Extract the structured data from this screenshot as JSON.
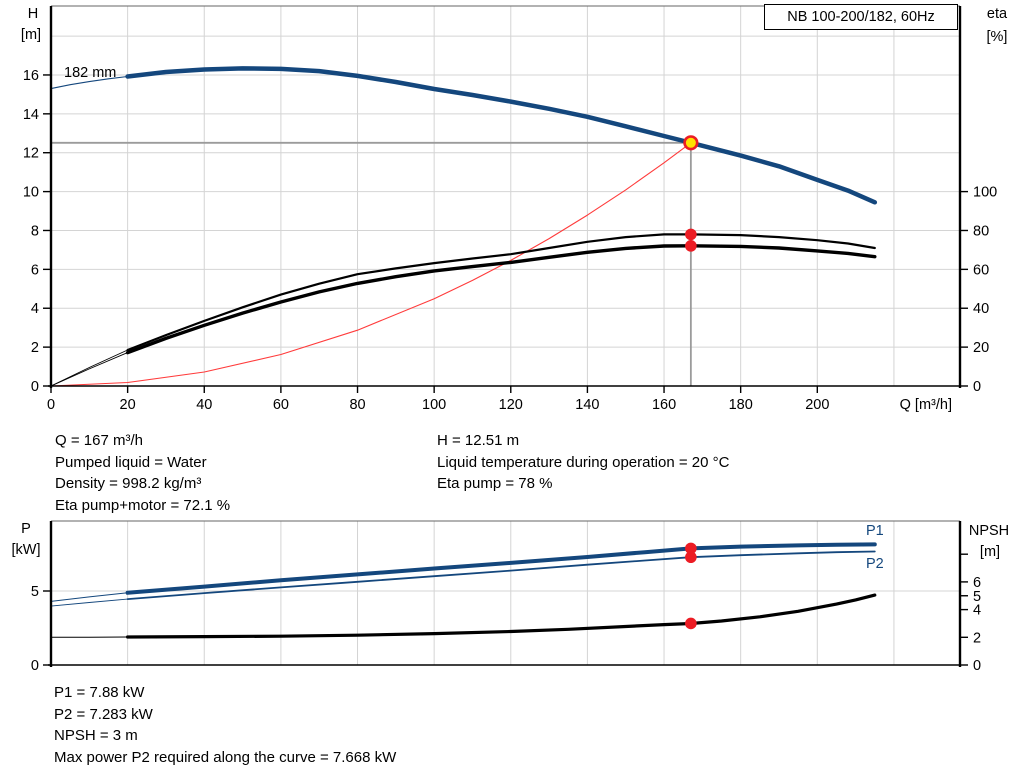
{
  "colors": {
    "curve_blue": "#14477d",
    "curve_black": "#000000",
    "system_red": "#ff3b3b",
    "dot_red": "#ec1c24",
    "duty_yellow": "#ffe100",
    "crosshair_gray": "#9b9b9b",
    "grid_gray": "#d4d4d4"
  },
  "info_top": {
    "left": [
      "Q = 167 m³/h",
      "Pumped liquid = Water",
      "Density = 998.2 kg/m³",
      "Eta pump+motor = 72.1 %"
    ],
    "right": [
      "H = 12.51 m",
      "Liquid temperature during operation = 20 °C",
      "Eta pump = 78 %"
    ]
  },
  "info_bottom": [
    "P1 = 7.88 kW",
    "P2 = 7.283 kW",
    "NPSH = 3 m",
    "Max power P2 required along the curve = 7.668 kW"
  ],
  "chart_data": [
    {
      "type": "line",
      "title": "NB 100-200/182, 60Hz",
      "x_axis": {
        "label": "Q [m³/h]",
        "ticks": [
          0,
          20,
          40,
          60,
          80,
          100,
          120,
          140,
          160,
          180,
          200
        ],
        "grid_max": 220,
        "range": [
          0,
          237
        ]
      },
      "y_left": {
        "label_lines": [
          "H",
          "[m]"
        ],
        "ticks": [
          0,
          2,
          4,
          6,
          8,
          10,
          12,
          14,
          16
        ],
        "grid": [
          2,
          4,
          6,
          8,
          10,
          12,
          14,
          16,
          18
        ],
        "range": [
          0,
          19.5
        ]
      },
      "y_right": {
        "label_lines": [
          "eta",
          "[%]"
        ],
        "ticks": [
          0,
          20,
          40,
          60,
          80,
          100
        ],
        "range": [
          0,
          195
        ]
      },
      "series": [
        {
          "name": "system-curve",
          "color": "#ff3b3b",
          "width": 1.1,
          "thin_width": 1.1,
          "split": 0,
          "points": [
            [
              0,
              0
            ],
            [
              20,
              0.18
            ],
            [
              40,
              0.72
            ],
            [
              60,
              1.62
            ],
            [
              80,
              2.87
            ],
            [
              100,
              4.49
            ],
            [
              110,
              5.43
            ],
            [
              120,
              6.46
            ],
            [
              130,
              7.58
            ],
            [
              140,
              8.79
            ],
            [
              150,
              10.09
            ],
            [
              160,
              11.48
            ],
            [
              167,
              12.51
            ]
          ]
        },
        {
          "name": "eta-pump-curve",
          "color": "#000000",
          "width": 2.2,
          "thin_width": 0.9,
          "split": 20,
          "points": [
            [
              0,
              0
            ],
            [
              10,
              0.95
            ],
            [
              20,
              1.85
            ],
            [
              30,
              2.62
            ],
            [
              40,
              3.35
            ],
            [
              50,
              4.05
            ],
            [
              60,
              4.7
            ],
            [
              70,
              5.26
            ],
            [
              80,
              5.75
            ],
            [
              90,
              6.05
            ],
            [
              100,
              6.32
            ],
            [
              110,
              6.56
            ],
            [
              120,
              6.78
            ],
            [
              130,
              7.1
            ],
            [
              140,
              7.42
            ],
            [
              150,
              7.66
            ],
            [
              160,
              7.8
            ],
            [
              167,
              7.8
            ],
            [
              180,
              7.76
            ],
            [
              190,
              7.66
            ],
            [
              200,
              7.5
            ],
            [
              208,
              7.33
            ],
            [
              215,
              7.1
            ]
          ]
        },
        {
          "name": "eta-pump-motor-curve",
          "color": "#000000",
          "width": 3.4,
          "thin_width": 0.9,
          "split": 20,
          "points": [
            [
              0,
              0
            ],
            [
              10,
              0.88
            ],
            [
              20,
              1.72
            ],
            [
              30,
              2.45
            ],
            [
              40,
              3.12
            ],
            [
              50,
              3.75
            ],
            [
              60,
              4.32
            ],
            [
              70,
              4.84
            ],
            [
              80,
              5.28
            ],
            [
              90,
              5.62
            ],
            [
              100,
              5.92
            ],
            [
              110,
              6.14
            ],
            [
              120,
              6.36
            ],
            [
              130,
              6.62
            ],
            [
              140,
              6.88
            ],
            [
              150,
              7.08
            ],
            [
              160,
              7.2
            ],
            [
              167,
              7.21
            ],
            [
              180,
              7.18
            ],
            [
              190,
              7.1
            ],
            [
              200,
              6.95
            ],
            [
              208,
              6.82
            ],
            [
              215,
              6.65
            ]
          ]
        },
        {
          "name": "head-curve-182mm",
          "label": "182 mm",
          "color": "#14477d",
          "width": 4.5,
          "thin_width": 1.1,
          "split": 20,
          "points": [
            [
              0,
              15.3
            ],
            [
              5,
              15.5
            ],
            [
              10,
              15.66
            ],
            [
              15,
              15.8
            ],
            [
              20,
              15.92
            ],
            [
              30,
              16.15
            ],
            [
              40,
              16.28
            ],
            [
              50,
              16.34
            ],
            [
              60,
              16.31
            ],
            [
              70,
              16.2
            ],
            [
              80,
              15.95
            ],
            [
              90,
              15.64
            ],
            [
              100,
              15.28
            ],
            [
              110,
              14.97
            ],
            [
              120,
              14.63
            ],
            [
              130,
              14.26
            ],
            [
              140,
              13.85
            ],
            [
              150,
              13.36
            ],
            [
              160,
              12.86
            ],
            [
              167,
              12.51
            ],
            [
              180,
              11.85
            ],
            [
              190,
              11.3
            ],
            [
              200,
              10.6
            ],
            [
              208,
              10.05
            ],
            [
              215,
              9.45
            ]
          ]
        }
      ],
      "crosshair": {
        "q": 167,
        "h": 12.51
      },
      "duty_point": {
        "q": 167,
        "h": 12.51
      },
      "dots": [
        {
          "q": 167,
          "v": 7.8
        },
        {
          "q": 167,
          "v": 7.21
        }
      ]
    },
    {
      "type": "line",
      "x_axis": {
        "grid_max": 220,
        "range": [
          0,
          237
        ]
      },
      "y_left": {
        "label_lines": [
          "P",
          "[kW]"
        ],
        "ticks": [
          0,
          5
        ],
        "grid": [
          5
        ],
        "range": [
          0,
          9.7
        ]
      },
      "y_right": {
        "label_lines": [
          "NPSH",
          "[m]"
        ],
        "ticks": [
          0,
          2,
          4,
          5,
          6
        ],
        "unlabeled_ticks": [
          8
        ],
        "range": [
          0,
          10.4
        ]
      },
      "series": [
        {
          "name": "npsh-curve",
          "axis": "N",
          "color": "#000000",
          "width": 3.2,
          "thin_width": 1.0,
          "split": 20,
          "points": [
            [
              0,
              2.0
            ],
            [
              10,
              2.0
            ],
            [
              20,
              2.02
            ],
            [
              40,
              2.05
            ],
            [
              60,
              2.08
            ],
            [
              80,
              2.15
            ],
            [
              100,
              2.27
            ],
            [
              120,
              2.42
            ],
            [
              135,
              2.58
            ],
            [
              150,
              2.78
            ],
            [
              160,
              2.92
            ],
            [
              167,
              3.0
            ],
            [
              175,
              3.18
            ],
            [
              185,
              3.48
            ],
            [
              195,
              3.88
            ],
            [
              205,
              4.4
            ],
            [
              210,
              4.7
            ],
            [
              215,
              5.05
            ]
          ]
        },
        {
          "name": "p2-curve",
          "label": "P2",
          "axis": "P",
          "color": "#14477d",
          "width": 1.8,
          "thin_width": 0.9,
          "split": 20,
          "points": [
            [
              0,
              3.98
            ],
            [
              10,
              4.22
            ],
            [
              20,
              4.45
            ],
            [
              40,
              4.86
            ],
            [
              60,
              5.24
            ],
            [
              80,
              5.62
            ],
            [
              100,
              6.0
            ],
            [
              120,
              6.38
            ],
            [
              140,
              6.78
            ],
            [
              155,
              7.06
            ],
            [
              167,
              7.283
            ],
            [
              180,
              7.42
            ],
            [
              195,
              7.55
            ],
            [
              205,
              7.62
            ],
            [
              215,
              7.67
            ]
          ]
        },
        {
          "name": "p1-curve",
          "label": "P1",
          "axis": "P",
          "color": "#14477d",
          "width": 4.0,
          "thin_width": 1.0,
          "split": 20,
          "points": [
            [
              0,
              4.3
            ],
            [
              10,
              4.6
            ],
            [
              20,
              4.88
            ],
            [
              40,
              5.3
            ],
            [
              60,
              5.72
            ],
            [
              80,
              6.12
            ],
            [
              100,
              6.52
            ],
            [
              120,
              6.9
            ],
            [
              140,
              7.3
            ],
            [
              155,
              7.62
            ],
            [
              167,
              7.88
            ],
            [
              180,
              8.0
            ],
            [
              195,
              8.08
            ],
            [
              205,
              8.12
            ],
            [
              215,
              8.15
            ]
          ]
        }
      ],
      "dots": [
        {
          "q": 167,
          "v": 7.88,
          "axis": "P"
        },
        {
          "q": 167,
          "v": 7.283,
          "axis": "P"
        },
        {
          "q": 167,
          "v": 3.0,
          "axis": "N"
        }
      ]
    }
  ]
}
